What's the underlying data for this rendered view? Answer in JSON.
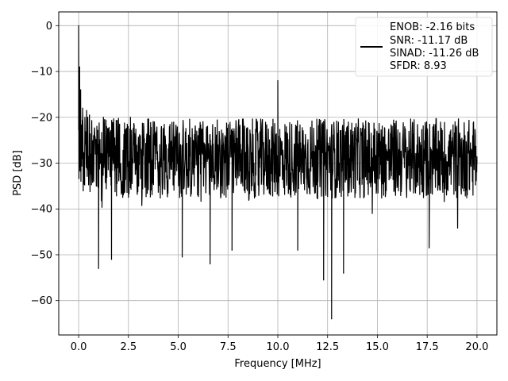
{
  "chart_data": {
    "type": "line",
    "title": "",
    "xlabel": "Frequency [MHz]",
    "ylabel": "PSD [dB]",
    "xlim": [
      -1.0,
      21.0
    ],
    "ylim": [
      -67.5,
      3.0
    ],
    "xticks": [
      0.0,
      2.5,
      5.0,
      7.5,
      10.0,
      12.5,
      15.0,
      17.5,
      20.0
    ],
    "xtick_labels": [
      "0.0",
      "2.5",
      "5.0",
      "7.5",
      "10.0",
      "12.5",
      "15.0",
      "17.5",
      "20.0"
    ],
    "yticks": [
      0,
      -10,
      -20,
      -30,
      -40,
      -50,
      -60
    ],
    "ytick_labels": [
      "0",
      "−10",
      "−20",
      "−30",
      "−40",
      "−50",
      "−60"
    ],
    "grid": true,
    "legend_position": "top-right",
    "legend_lines": [
      "ENOB: -2.16 bits",
      "SNR: -11.17 dB",
      "SINAD: -11.26 dB",
      "SFDR: 8.93"
    ],
    "series": [
      {
        "color": "#000000",
        "noise_floor": {
          "x_start": 0.0,
          "x_end": 20.0,
          "typical_min": -36.0,
          "typical_max": -22.0,
          "mean": -29.0
        },
        "x": [
          0.0,
          0.02,
          0.05,
          0.1,
          0.15,
          0.2,
          0.3,
          0.45,
          0.6,
          0.75,
          0.9,
          1.0,
          1.2,
          1.4,
          1.6,
          1.65,
          1.8,
          2.0,
          2.3,
          2.6,
          2.9,
          3.2,
          3.5,
          3.8,
          4.1,
          4.4,
          4.8,
          5.2,
          5.6,
          6.0,
          6.4,
          6.6,
          7.0,
          7.4,
          7.7,
          7.8,
          8.2,
          8.5,
          8.8,
          9.2,
          9.6,
          10.0,
          10.5,
          11.0,
          11.5,
          12.0,
          12.3,
          12.5,
          12.7,
          13.0,
          13.3,
          13.6,
          14.0,
          14.4,
          14.8,
          15.2,
          15.6,
          16.0,
          16.4,
          16.8,
          17.2,
          17.6,
          17.9,
          18.2,
          18.6,
          19.0,
          19.4,
          19.8,
          20.0
        ],
        "y": [
          0.0,
          -22.0,
          -9.0,
          -14.0,
          -28.0,
          -18.0,
          -30.0,
          -20.0,
          -28.0,
          -24.0,
          -35.0,
          -53.0,
          -30.0,
          -22.0,
          -31.0,
          -51.0,
          -26.0,
          -24.0,
          -31.0,
          -20.0,
          -28.0,
          -24.0,
          -33.0,
          -21.0,
          -29.0,
          -26.0,
          -31.0,
          -50.5,
          -27.0,
          -24.0,
          -32.0,
          -52.0,
          -26.0,
          -29.0,
          -49.0,
          -22.5,
          -31.0,
          -26.0,
          -36.0,
          -24.0,
          -31.0,
          -12.0,
          -30.0,
          -49.0,
          -27.0,
          -25.0,
          -55.5,
          -30.0,
          -64.0,
          -23.5,
          -54.0,
          -29.0,
          -26.0,
          -33.0,
          -24.0,
          -31.0,
          -27.0,
          -35.0,
          -22.5,
          -29.0,
          -27.0,
          -48.5,
          -31.0,
          -26.0,
          -29.0,
          -33.0,
          -24.0,
          -28.0,
          -30.0
        ]
      }
    ]
  }
}
